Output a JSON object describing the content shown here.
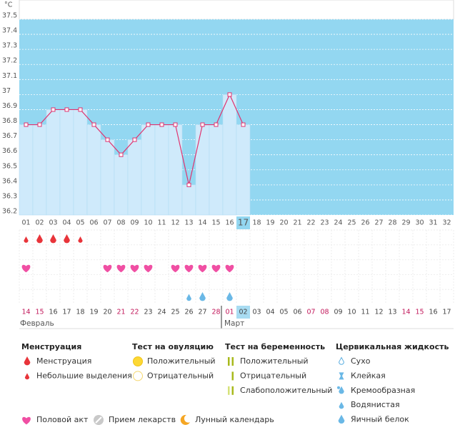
{
  "chart_data": {
    "type": "line",
    "y_unit": "°C",
    "categories": [
      "01",
      "02",
      "03",
      "04",
      "05",
      "06",
      "07",
      "08",
      "09",
      "10",
      "11",
      "12",
      "13",
      "14",
      "15",
      "16",
      "17",
      "18",
      "19",
      "20",
      "21",
      "22",
      "23",
      "24",
      "25",
      "26",
      "27",
      "28",
      "29",
      "30",
      "31",
      "32"
    ],
    "values": [
      36.8,
      36.8,
      36.9,
      36.9,
      36.9,
      36.8,
      36.7,
      36.6,
      36.7,
      36.8,
      36.8,
      36.8,
      36.4,
      36.8,
      36.8,
      37.0,
      36.8,
      null,
      null,
      null,
      null,
      null,
      null,
      null,
      null,
      null,
      null,
      null,
      null,
      null,
      null,
      null
    ],
    "ylim": [
      36.2,
      37.5
    ],
    "yticks": [
      36.2,
      36.3,
      36.4,
      36.5,
      36.6,
      36.7,
      36.8,
      36.9,
      37,
      37.1,
      37.2,
      37.3,
      37.4,
      37.5
    ],
    "color": "#e0336f",
    "fill_color": "#cfeafb",
    "background_color": "#93d7f1",
    "today_index": 16,
    "grid": true
  },
  "symptoms": {
    "menstruation": [
      "light",
      "heavy",
      "heavy",
      "heavy",
      "light",
      null,
      null,
      null,
      null,
      null,
      null,
      null,
      null,
      null,
      null,
      null,
      null
    ],
    "intercourse": [
      true,
      false,
      false,
      false,
      false,
      false,
      true,
      true,
      true,
      true,
      false,
      true,
      true,
      true,
      true,
      true,
      false
    ],
    "fluid": [
      null,
      null,
      null,
      null,
      null,
      null,
      null,
      null,
      null,
      null,
      null,
      null,
      "watery",
      "egg-white",
      null,
      "egg-white",
      null
    ]
  },
  "calendar": {
    "dates": [
      "14",
      "15",
      "16",
      "17",
      "18",
      "19",
      "20",
      "21",
      "22",
      "23",
      "24",
      "25",
      "26",
      "27",
      "28",
      "01",
      "02",
      "03",
      "04",
      "05",
      "06",
      "07",
      "08",
      "09",
      "10",
      "11",
      "12",
      "13",
      "14",
      "15",
      "16",
      "17"
    ],
    "weekend": [
      true,
      true,
      false,
      false,
      false,
      false,
      false,
      true,
      true,
      false,
      false,
      false,
      false,
      false,
      true,
      true,
      false,
      false,
      false,
      false,
      false,
      true,
      true,
      false,
      false,
      false,
      false,
      false,
      true,
      true,
      false,
      false
    ],
    "months": [
      {
        "label": "Февраль",
        "start": 0
      },
      {
        "label": "Март",
        "start": 15
      }
    ]
  },
  "legend": {
    "groups": [
      {
        "title": "Менструация",
        "items": [
          {
            "label": "Менструация",
            "icon": "drop-heavy"
          },
          {
            "label": "Небольшие выделения",
            "icon": "drop-light"
          }
        ]
      },
      {
        "title": "Тест на овуляцию",
        "items": [
          {
            "label": "Положительный",
            "icon": "circle-filled"
          },
          {
            "label": "Отрицательный",
            "icon": "circle-empty"
          }
        ]
      },
      {
        "title": "Тест на беременность",
        "items": [
          {
            "label": "Положительный",
            "icon": "bars-two"
          },
          {
            "label": "Отрицательный",
            "icon": "bars-one"
          },
          {
            "label": "Слабоположительный",
            "icon": "bars-weak"
          }
        ]
      },
      {
        "title": "Цервикальная жидкость",
        "items": [
          {
            "label": "Сухо",
            "icon": "dry"
          },
          {
            "label": "Клейкая",
            "icon": "sticky"
          },
          {
            "label": "Кремообразная",
            "icon": "creamy"
          },
          {
            "label": "Водянистая",
            "icon": "watery"
          },
          {
            "label": "Яичный белок",
            "icon": "egg-white"
          }
        ]
      }
    ],
    "extras": [
      {
        "label": "Половой акт",
        "icon": "heart"
      },
      {
        "label": "Прием лекарств",
        "icon": "pill"
      },
      {
        "label": "Лунный календарь",
        "icon": "moon"
      }
    ]
  }
}
